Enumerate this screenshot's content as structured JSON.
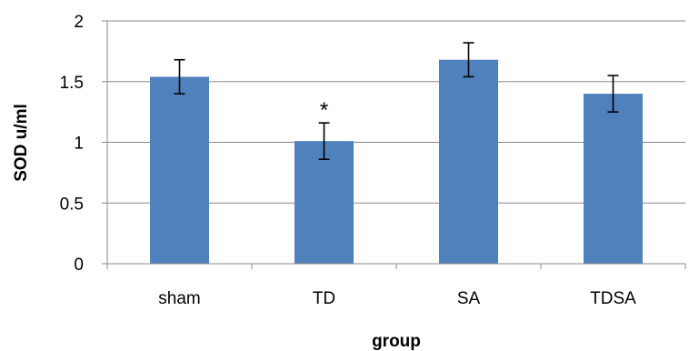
{
  "chart_data": {
    "type": "bar",
    "categories": [
      "sham",
      "TD",
      "SA",
      "TDSA"
    ],
    "values": [
      1.54,
      1.01,
      1.68,
      1.4
    ],
    "errors": [
      0.14,
      0.15,
      0.14,
      0.15
    ],
    "title": "",
    "xlabel": "group",
    "ylabel": "SOD  u/ml",
    "ylim": [
      0,
      2
    ],
    "yticks": [
      "0",
      "0.5",
      "1",
      "1.5",
      "2"
    ],
    "ytick_values": [
      0,
      0.5,
      1,
      1.5,
      2
    ],
    "grid": true,
    "legend": "none",
    "annotations": [
      {
        "category": "TD",
        "text": "*"
      }
    ],
    "colors": {
      "bar": "#4f81bd",
      "grid": "#888888",
      "axis": "#888888",
      "error_bar": "#000000"
    }
  }
}
